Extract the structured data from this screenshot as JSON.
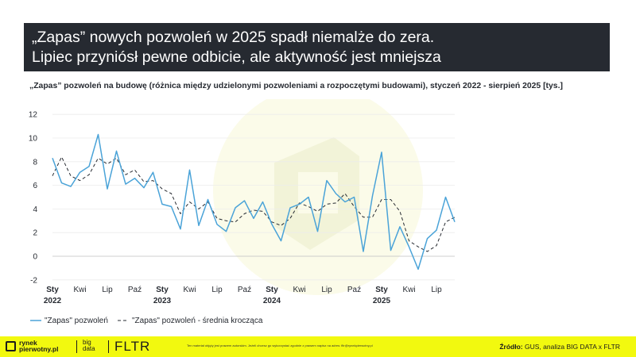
{
  "header": {
    "title_line1": "„Zapas” nowych pozwoleń w 2025 spadł niemalże do zera.",
    "title_line2": "Lipiec przyniósł pewne odbicie, ale aktywność jest mniejsza"
  },
  "chart_data": {
    "type": "line",
    "title": "„Zapas” pozwoleń na budowę (różnica między udzielonymi pozwoleniami a rozpoczętymi budowami), styczeń 2022 - sierpień 2025 [tys.]",
    "xlabel": "",
    "ylabel": "",
    "ylim": [
      -2,
      12
    ],
    "yticks": [
      -2,
      0,
      2,
      4,
      6,
      8,
      10,
      12
    ],
    "grid": true,
    "legend_position": "bottom-left",
    "x_tick_labels": [
      {
        "index": 0,
        "label": "Sty",
        "year": "2022"
      },
      {
        "index": 3,
        "label": "Kwi"
      },
      {
        "index": 6,
        "label": "Lip"
      },
      {
        "index": 9,
        "label": "Paź"
      },
      {
        "index": 12,
        "label": "Sty",
        "year": "2023"
      },
      {
        "index": 15,
        "label": "Kwi"
      },
      {
        "index": 18,
        "label": "Lip"
      },
      {
        "index": 21,
        "label": "Paź"
      },
      {
        "index": 24,
        "label": "Sty",
        "year": "2024"
      },
      {
        "index": 27,
        "label": "Kwi"
      },
      {
        "index": 30,
        "label": "Lip"
      },
      {
        "index": 33,
        "label": "Paź"
      },
      {
        "index": 36,
        "label": "Sty",
        "year": "2025"
      },
      {
        "index": 39,
        "label": "Kwi"
      },
      {
        "index": 42,
        "label": "Lip"
      }
    ],
    "series": [
      {
        "name": "\"Zapas\" pozwoleń",
        "color": "#4aa3d8",
        "style": "solid",
        "values": [
          8.3,
          6.2,
          5.9,
          7.1,
          7.6,
          10.3,
          5.7,
          8.9,
          6.1,
          6.6,
          5.8,
          7.1,
          4.4,
          4.2,
          2.3,
          7.3,
          2.6,
          4.8,
          2.7,
          2.1,
          4.1,
          4.7,
          3.2,
          4.6,
          2.7,
          1.3,
          4.1,
          4.4,
          5.0,
          2.1,
          6.4,
          5.3,
          4.6,
          5.0,
          0.4,
          5.1,
          8.8,
          0.5,
          2.5,
          0.8,
          -1.1,
          1.5,
          2.2,
          5.0,
          2.9
        ]
      },
      {
        "name": "\"Zapas\" pozwoleń - średnia krocząca",
        "color": "#262a31",
        "style": "dashed",
        "values": [
          6.8,
          8.4,
          6.8,
          6.4,
          6.9,
          8.3,
          7.8,
          8.3,
          6.9,
          7.3,
          6.3,
          6.4,
          5.7,
          5.3,
          3.6,
          4.6,
          4.0,
          4.6,
          3.2,
          3.0,
          2.9,
          3.6,
          3.9,
          3.8,
          2.9,
          2.6,
          3.2,
          4.5,
          4.2,
          3.8,
          4.4,
          4.5,
          5.3,
          4.2,
          3.3,
          3.3,
          4.8,
          4.8,
          3.8,
          1.3,
          0.8,
          0.4,
          0.9,
          2.9,
          3.3
        ]
      }
    ]
  },
  "footer": {
    "logo_rp_line1": "rynek",
    "logo_rp_line2": "pierwotny.pl",
    "logo_bd_line1": "big",
    "logo_bd_line2": "data",
    "logo_fltr": "FLTR",
    "disclaimer": "Ten materiał objęty jest prawem autorskim. Jeżeli chcesz go wykorzystać zgodnie z prawem napisz na adres: fltr@rynekpierwotny.pl",
    "source_label": "Źródło:",
    "source_text": "GUS, analiza BIG DATA x FLTR"
  }
}
